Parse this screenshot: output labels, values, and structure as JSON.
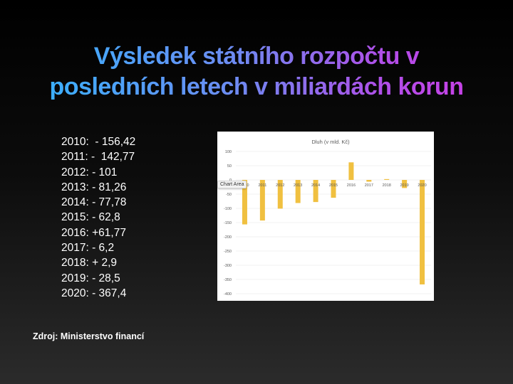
{
  "title": {
    "line1": "Výsledek státního rozpočtu v",
    "line2": "posledních letech v miliardách korun"
  },
  "values_list": [
    "2010:  - 156,42",
    "2011: -  142,77",
    "2012: - 101",
    "2013: - 81,26",
    "2014: - 77,78",
    "2015: - 62,8",
    "2016: +61,77",
    "2017: - 6,2",
    "2018: + 2,9",
    "2019: - 28,5",
    "2020: - 367,4"
  ],
  "source": "Zdroj: Ministerstvo financí",
  "chart_area_tag": "Chart Area",
  "colors": {
    "bar": "#F0C040",
    "grid": "#E3E3E3",
    "title_gradient": [
      "#2fb8ff",
      "#d33be6"
    ]
  },
  "chart_data": {
    "type": "bar",
    "title": "Dluh (v mld. Kč)",
    "categories": [
      "2010",
      "2011",
      "2012",
      "2013",
      "2014",
      "2015",
      "2016",
      "2017",
      "2018",
      "2019",
      "2020"
    ],
    "values": [
      -156.42,
      -142.77,
      -101,
      -81.26,
      -77.78,
      -62.8,
      61.77,
      -6.2,
      2.9,
      -28.5,
      -367.4
    ],
    "ylim": [
      -400,
      100
    ],
    "yticks": [
      100,
      50,
      0,
      -50,
      -100,
      -150,
      -200,
      -250,
      -300,
      -350,
      -400
    ],
    "grid": true,
    "xlabel": "",
    "ylabel": ""
  }
}
